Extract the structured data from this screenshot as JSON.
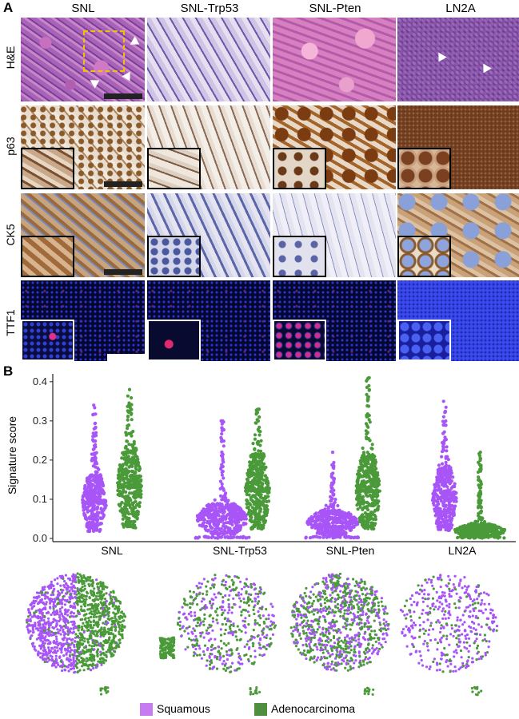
{
  "panel_a": {
    "letter": "A",
    "columns": [
      "SNL",
      "SNL-Trp53",
      "SNL-Pten",
      "LN2A"
    ],
    "rows": [
      "H&E",
      "p63",
      "CK5",
      "TTF1"
    ]
  },
  "panel_b": {
    "letter": "B",
    "legend": [
      {
        "label": "Squamous",
        "color": "#b35ce6"
      },
      {
        "label": "Adenocarcinoma",
        "color": "#4f8f3f"
      }
    ]
  },
  "chart_data": {
    "type": "scatter",
    "ylabel": "Signature score",
    "ylim": [
      0,
      0.42
    ],
    "yticks": [
      "0.0",
      "0.1",
      "0.2",
      "0.3",
      "0.4"
    ],
    "categories": [
      "SNL",
      "SNL-Trp53",
      "SNL-Pten",
      "LN2A"
    ],
    "series": [
      {
        "name": "Squamous",
        "color": "#a855f7",
        "max": [
          0.34,
          0.3,
          0.22,
          0.35
        ],
        "median": [
          0.09,
          0.05,
          0.04,
          0.1
        ]
      },
      {
        "name": "Adenocarcinoma",
        "color": "#4b9a3a",
        "max": [
          0.38,
          0.33,
          0.41,
          0.22
        ],
        "median": [
          0.13,
          0.12,
          0.12,
          0.02
        ]
      }
    ]
  }
}
